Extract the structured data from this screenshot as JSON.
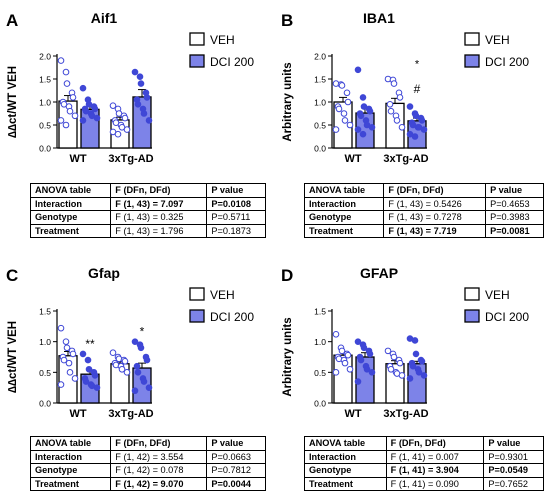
{
  "panels": [
    {
      "letter": "A",
      "title": "Aif1",
      "ylabel": "∆∆ct/WT VEH",
      "ylim": [
        0,
        2.0
      ],
      "yticks": [
        "0.0",
        "0.5",
        "1.0",
        "1.5",
        "2.0"
      ],
      "groups": [
        "WT",
        "3xTg-AD"
      ],
      "legend": [
        "VEH",
        "DCI 200"
      ],
      "bars": [
        1.02,
        0.84,
        0.61,
        1.11
      ],
      "errors": [
        0.12,
        0.06,
        0.06,
        0.16
      ],
      "points": [
        [
          1.9,
          1.65,
          1.4,
          1.2,
          1.1,
          1.0,
          0.95,
          0.9,
          0.8,
          0.7,
          0.6,
          0.5
        ],
        [
          1.3,
          1.05,
          0.95,
          0.9,
          0.85,
          0.85,
          0.8,
          0.75,
          0.7,
          0.65,
          0.6
        ],
        [
          0.92,
          0.85,
          0.75,
          0.7,
          0.65,
          0.6,
          0.55,
          0.5,
          0.45,
          0.4,
          0.35,
          0.3
        ],
        [
          1.65,
          1.55,
          1.4,
          1.2,
          1.1,
          1.05,
          0.95,
          0.85,
          0.75,
          0.6
        ]
      ],
      "annotations": [
        "",
        "",
        "",
        ""
      ],
      "table": {
        "header": [
          "ANOVA table",
          "F (DFn, DFd)",
          "P value"
        ],
        "rows": [
          {
            "effect": "Interaction",
            "f": "F (1, 43) = 7.097",
            "p": "P=0.0108",
            "bold": true
          },
          {
            "effect": "Genotype",
            "f": "F (1, 43) = 0.325",
            "p": "P=0.5711",
            "bold": false
          },
          {
            "effect": "Treatment",
            "f": "F (1, 43) = 1.796",
            "p": "P=0.1873",
            "bold": false
          }
        ]
      }
    },
    {
      "letter": "B",
      "title": "IBA1",
      "ylabel": "Arbitrary units",
      "ylim": [
        0,
        2.0
      ],
      "yticks": [
        "0.0",
        "0.5",
        "1.0",
        "1.5",
        "2.0"
      ],
      "groups": [
        "WT",
        "3xTg-AD"
      ],
      "legend": [
        "VEH",
        "DCI 200"
      ],
      "bars": [
        1.0,
        0.76,
        0.97,
        0.59
      ],
      "errors": [
        0.1,
        0.11,
        0.11,
        0.06
      ],
      "points": [
        [
          1.4,
          1.38,
          1.36,
          1.2,
          1.0,
          0.9,
          0.85,
          0.75,
          0.6,
          0.5,
          0.4
        ],
        [
          1.7,
          1.1,
          0.9,
          0.85,
          0.8,
          0.75,
          0.7,
          0.6,
          0.5,
          0.45,
          0.4,
          0.3
        ],
        [
          1.5,
          1.48,
          1.4,
          1.2,
          1.1,
          0.95,
          0.8,
          0.7,
          0.6,
          0.45
        ],
        [
          0.9,
          0.75,
          0.7,
          0.65,
          0.6,
          0.55,
          0.5,
          0.45,
          0.45,
          0.4,
          0.3,
          0.25
        ]
      ],
      "annotations": [
        "",
        "",
        "",
        "*|#"
      ],
      "table": {
        "header": [
          "ANOVA table",
          "F (DFn, DFd)",
          "P value"
        ],
        "rows": [
          {
            "effect": "Interaction",
            "f": "F (1, 43) = 0.5426",
            "p": "P=0.4653",
            "bold": false
          },
          {
            "effect": "Genotype",
            "f": "F (1, 43) = 0.7278",
            "p": "P=0.3983",
            "bold": false
          },
          {
            "effect": "Treatment",
            "f": "F (1, 43) = 7.719",
            "p": "P=0.0081",
            "bold": true
          }
        ]
      }
    },
    {
      "letter": "C",
      "title": "Gfap",
      "ylabel": "∆∆ct/WT VEH",
      "ylim": [
        0,
        1.5
      ],
      "yticks": [
        "0.0",
        "0.5",
        "1.0",
        "1.5"
      ],
      "groups": [
        "WT",
        "3xTg-AD"
      ],
      "legend": [
        "VEH",
        "DCI 200"
      ],
      "bars": [
        0.77,
        0.47,
        0.64,
        0.57
      ],
      "errors": [
        0.07,
        0.07,
        0.03,
        0.08
      ],
      "points": [
        [
          1.22,
          1.0,
          0.9,
          0.85,
          0.8,
          0.75,
          0.7,
          0.65,
          0.5,
          0.4,
          0.3
        ],
        [
          0.8,
          0.7,
          0.55,
          0.5,
          0.45,
          0.4,
          0.35,
          0.3,
          0.28,
          0.25
        ],
        [
          0.82,
          0.75,
          0.72,
          0.7,
          0.68,
          0.65,
          0.62,
          0.6,
          0.55,
          0.5
        ],
        [
          1.0,
          0.95,
          0.9,
          0.75,
          0.7,
          0.6,
          0.5,
          0.4,
          0.35,
          0.25,
          0.2
        ]
      ],
      "annotations": [
        "",
        "**",
        "",
        "*"
      ],
      "table": {
        "header": [
          "ANOVA table",
          "F (DFn, DFd)",
          "P value"
        ],
        "rows": [
          {
            "effect": "Interaction",
            "f": "F (1, 42) = 3.554",
            "p": "P=0.0663",
            "bold": false
          },
          {
            "effect": "Genotype",
            "f": "F (1, 42) = 0.078",
            "p": "P=0.7812",
            "bold": false
          },
          {
            "effect": "Treatment",
            "f": "F (1, 42) = 9.070",
            "p": "P=0.0044",
            "bold": true
          }
        ]
      }
    },
    {
      "letter": "D",
      "title": "GFAP",
      "ylabel": "Arbitrary units",
      "ylim": [
        0,
        1.5
      ],
      "yticks": [
        "0.0",
        "0.5",
        "1.0",
        "1.5"
      ],
      "groups": [
        "WT",
        "3xTg-AD"
      ],
      "legend": [
        "VEH",
        "DCI 200"
      ],
      "bars": [
        0.78,
        0.75,
        0.64,
        0.64
      ],
      "errors": [
        0.06,
        0.07,
        0.05,
        0.04
      ],
      "points": [
        [
          1.12,
          0.9,
          0.85,
          0.8,
          0.78,
          0.75,
          0.72,
          0.7,
          0.65,
          0.55,
          0.5
        ],
        [
          1.0,
          0.95,
          0.9,
          0.85,
          0.8,
          0.75,
          0.7,
          0.6,
          0.55,
          0.5,
          0.35
        ],
        [
          0.85,
          0.8,
          0.75,
          0.7,
          0.65,
          0.6,
          0.55,
          0.5,
          0.48,
          0.45
        ],
        [
          1.05,
          1.02,
          0.8,
          0.7,
          0.68,
          0.65,
          0.6,
          0.55,
          0.5,
          0.45,
          0.4
        ]
      ],
      "annotations": [
        "",
        "",
        "",
        ""
      ],
      "table": {
        "header": [
          "ANOVA table",
          "F (DFn, DFd)",
          "P value"
        ],
        "rows": [
          {
            "effect": "Interaction",
            "f": "F (1, 41) = 0.007",
            "p": "P=0.9301",
            "bold": false
          },
          {
            "effect": "Genotype",
            "f": "F (1, 41) = 3.904",
            "p": "P=0.0549",
            "bold": true
          },
          {
            "effect": "Treatment",
            "f": "F (1, 41) = 0.090",
            "p": "P=0.7652",
            "bold": false
          }
        ]
      }
    }
  ],
  "colors": {
    "veh_fill": "#ffffff",
    "dci_fill": "#7d83e8",
    "point_stroke": "#3f47d6",
    "axis": "#000000"
  },
  "chart_data": [
    {
      "type": "bar",
      "title": "Aif1",
      "ylabel": "∆∆ct/WT VEH",
      "categories": [
        "WT",
        "3xTg-AD"
      ],
      "ylim": [
        0,
        2.0
      ],
      "series": [
        {
          "name": "VEH",
          "values": [
            1.02,
            0.61
          ]
        },
        {
          "name": "DCI 200",
          "values": [
            0.84,
            1.11
          ]
        }
      ]
    },
    {
      "type": "bar",
      "title": "IBA1",
      "ylabel": "Arbitrary units",
      "categories": [
        "WT",
        "3xTg-AD"
      ],
      "ylim": [
        0,
        2.0
      ],
      "series": [
        {
          "name": "VEH",
          "values": [
            1.0,
            0.97
          ]
        },
        {
          "name": "DCI 200",
          "values": [
            0.76,
            0.59
          ]
        }
      ]
    },
    {
      "type": "bar",
      "title": "Gfap",
      "ylabel": "∆∆ct/WT VEH",
      "categories": [
        "WT",
        "3xTg-AD"
      ],
      "ylim": [
        0,
        1.5
      ],
      "series": [
        {
          "name": "VEH",
          "values": [
            0.77,
            0.64
          ]
        },
        {
          "name": "DCI 200",
          "values": [
            0.47,
            0.57
          ]
        }
      ]
    },
    {
      "type": "bar",
      "title": "GFAP",
      "ylabel": "Arbitrary units",
      "categories": [
        "WT",
        "3xTg-AD"
      ],
      "ylim": [
        0,
        1.5
      ],
      "series": [
        {
          "name": "VEH",
          "values": [
            0.78,
            0.64
          ]
        },
        {
          "name": "DCI 200",
          "values": [
            0.75,
            0.64
          ]
        }
      ]
    }
  ]
}
